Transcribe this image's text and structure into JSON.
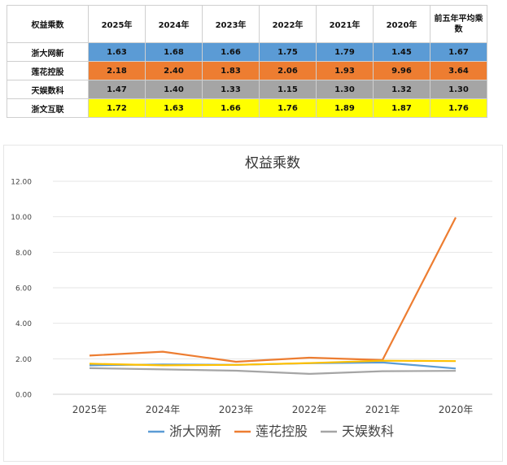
{
  "colors": {
    "row_colors": [
      "#5b9bd5",
      "#ed7d31",
      "#a5a5a5",
      "#ffff00"
    ],
    "line_colors": [
      "#5b9bd5",
      "#ed7d31",
      "#a5a5a5",
      "#ffc000"
    ]
  },
  "table": {
    "header": [
      "权益乘数",
      "2025年",
      "2024年",
      "2023年",
      "2022年",
      "2021年",
      "2020年",
      "前五年平均乘数"
    ],
    "rows": [
      {
        "name": "浙大网新",
        "values": [
          "1.63",
          "1.68",
          "1.66",
          "1.75",
          "1.79",
          "1.45",
          "1.67"
        ]
      },
      {
        "name": "莲花控股",
        "values": [
          "2.18",
          "2.40",
          "1.83",
          "2.06",
          "1.93",
          "9.96",
          "3.64"
        ]
      },
      {
        "name": "天娱数科",
        "values": [
          "1.47",
          "1.40",
          "1.33",
          "1.15",
          "1.30",
          "1.32",
          "1.30"
        ]
      },
      {
        "name": "浙文互联",
        "values": [
          "1.72",
          "1.63",
          "1.66",
          "1.76",
          "1.89",
          "1.87",
          "1.76"
        ]
      }
    ]
  },
  "chart_data": {
    "type": "line",
    "title": "权益乘数",
    "categories": [
      "2025年",
      "2024年",
      "2023年",
      "2022年",
      "2021年",
      "2020年"
    ],
    "y_ticks": [
      "0.00",
      "2.00",
      "4.00",
      "6.00",
      "8.00",
      "10.00",
      "12.00"
    ],
    "ylim": [
      0,
      12
    ],
    "grid": true,
    "legend_position": "bottom",
    "series": [
      {
        "name": "浙大网新",
        "values": [
          1.63,
          1.68,
          1.66,
          1.75,
          1.79,
          1.45
        ]
      },
      {
        "name": "莲花控股",
        "values": [
          2.18,
          2.4,
          1.83,
          2.06,
          1.93,
          9.96
        ]
      },
      {
        "name": "天娱数科",
        "values": [
          1.47,
          1.4,
          1.33,
          1.15,
          1.3,
          1.32
        ]
      },
      {
        "values": [
          1.72,
          1.63,
          1.66,
          1.76,
          1.89,
          1.87
        ]
      }
    ]
  }
}
